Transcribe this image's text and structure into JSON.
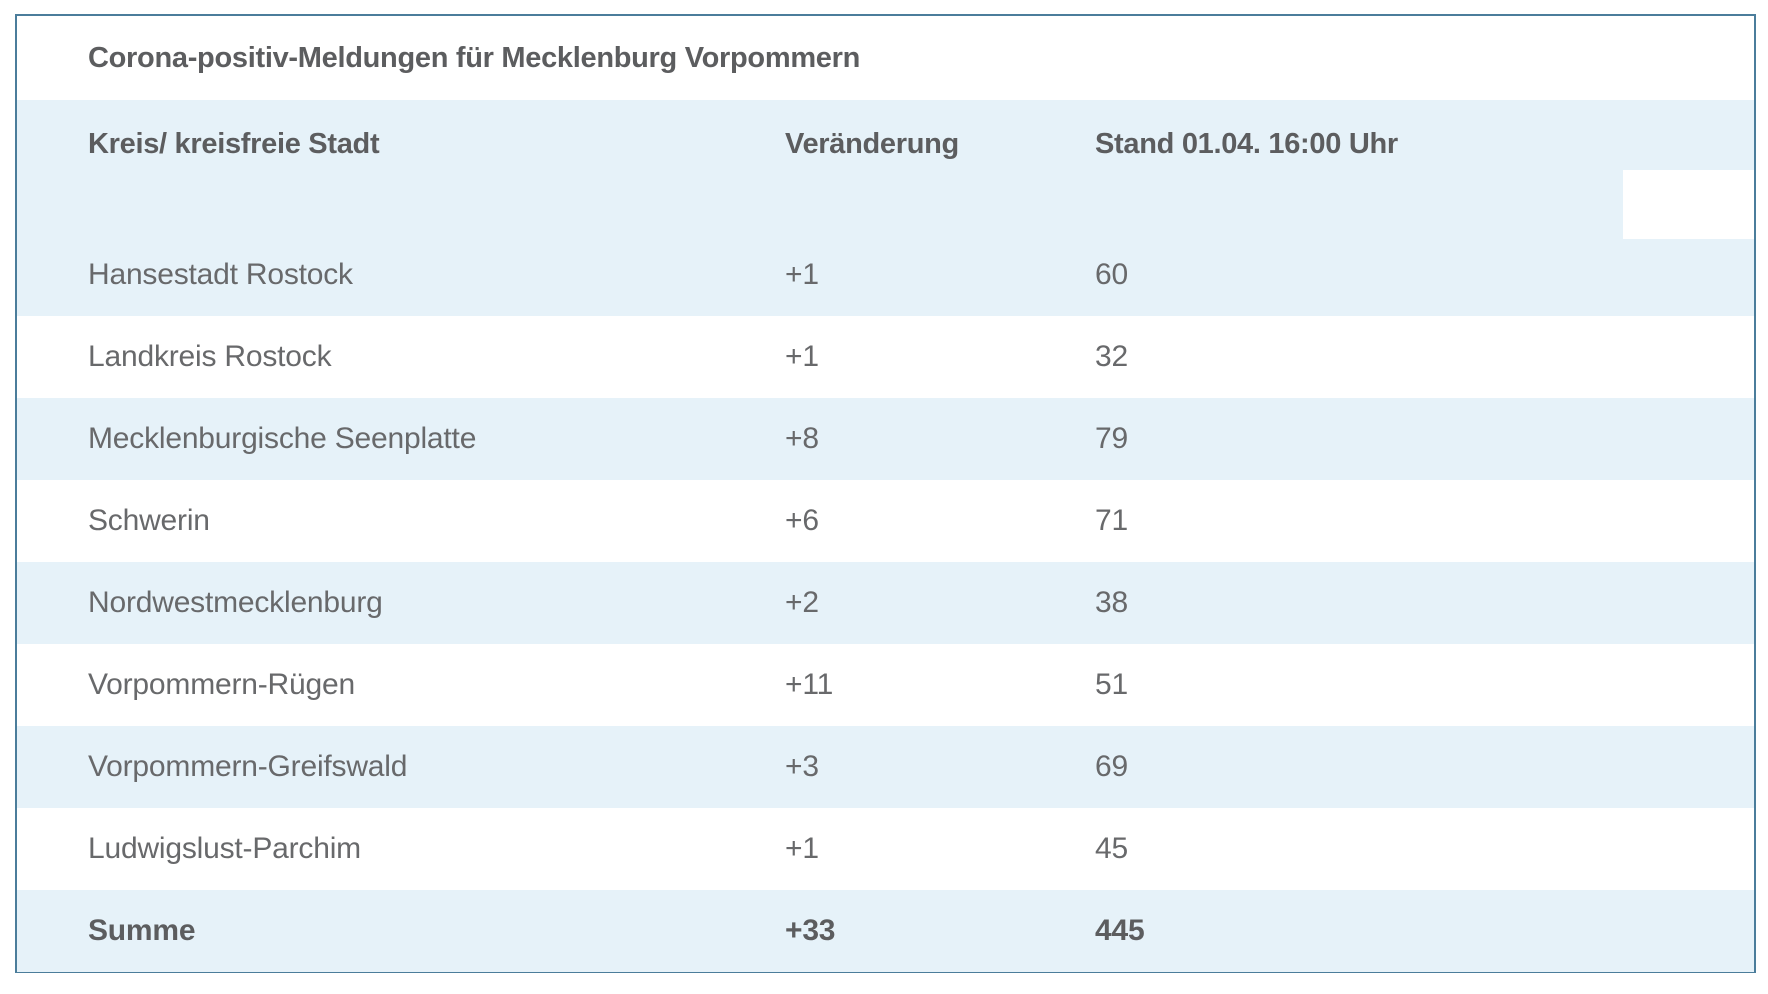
{
  "title": "Corona-positiv-Meldungen für Mecklenburg Vorpommern",
  "table": {
    "columns": [
      {
        "label": "Kreis/ kreisfreie Stadt"
      },
      {
        "label": "Veränderung"
      },
      {
        "label": "Stand 01.04. 16:00 Uhr"
      }
    ],
    "rows": [
      {
        "kreis": "Hansestadt Rostock",
        "veraenderung": "+1",
        "stand": "60"
      },
      {
        "kreis": "Landkreis Rostock",
        "veraenderung": "+1",
        "stand": "32"
      },
      {
        "kreis": "Mecklenburgische Seenplatte",
        "veraenderung": "+8",
        "stand": "79"
      },
      {
        "kreis": "Schwerin",
        "veraenderung": "+6",
        "stand": "71"
      },
      {
        "kreis": "Nordwestmecklenburg",
        "veraenderung": "+2",
        "stand": "38"
      },
      {
        "kreis": "Vorpommern-Rügen",
        "veraenderung": "+11",
        "stand": "51"
      },
      {
        "kreis": "Vorpommern-Greifswald",
        "veraenderung": "+3",
        "stand": "69"
      },
      {
        "kreis": "Ludwigslust-Parchim",
        "veraenderung": "+1",
        "stand": "45"
      }
    ],
    "total_row": {
      "kreis": "Summe",
      "veraenderung": "+33",
      "stand": "445"
    }
  },
  "colors": {
    "table_border": "#4b7d9b",
    "stripe_blue": "#e6f2f9",
    "text_body": "#68696b",
    "text_heading": "#5c5d5f"
  }
}
